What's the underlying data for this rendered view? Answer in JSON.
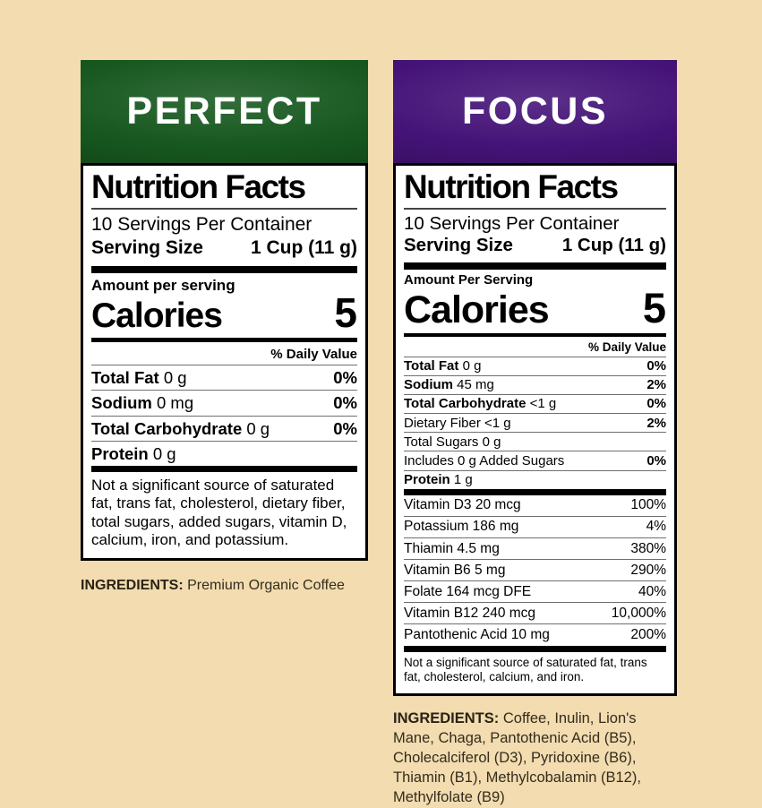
{
  "page": {
    "background_color": "#f2dcb0"
  },
  "perfect": {
    "banner_title": "PERFECT",
    "banner_color": "#17581f",
    "panel": {
      "title": "Nutrition Facts",
      "servings_per_container": "10 Servings Per Container",
      "serving_size_label": "Serving Size",
      "serving_size_value": "1 Cup (11 g)",
      "amount_per_serving": "Amount per serving",
      "calories_label": "Calories",
      "calories_value": "5",
      "daily_value_header": "% Daily Value",
      "rows": [
        {
          "name": "Total Fat",
          "amount": "0 g",
          "dv": "0%"
        },
        {
          "name": "Sodium",
          "amount": "0 mg",
          "dv": "0%"
        },
        {
          "name": "Total Carbohydrate",
          "amount": "0 g",
          "dv": "0%"
        },
        {
          "name": "Protein",
          "amount": "0 g",
          "dv": ""
        }
      ],
      "footnote": "Not a significant source of saturated fat, trans fat, cholesterol, dietary fiber, total sugars, added sugars, vitamin D, calcium, iron, and potassium."
    },
    "ingredients_label": "INGREDIENTS:",
    "ingredients_text": "Premium Organic Coffee"
  },
  "focus": {
    "banner_title": "FOCUS",
    "banner_color": "#451378",
    "panel": {
      "title": "Nutrition Facts",
      "servings_per_container": "10 Servings Per Container",
      "serving_size_label": "Serving Size",
      "serving_size_value": "1 Cup (11 g)",
      "amount_per_serving": "Amount Per Serving",
      "calories_label": "Calories",
      "calories_value": "5",
      "daily_value_header": "% Daily Value",
      "rows": [
        {
          "name": "Total Fat",
          "amount": "0 g",
          "dv": "0%"
        },
        {
          "name": "Sodium",
          "amount": "45 mg",
          "dv": "2%"
        },
        {
          "name": "Total Carbohydrate",
          "amount": "<1 g",
          "dv": "0%"
        },
        {
          "name": "Dietary Fiber",
          "amount": "<1 g",
          "dv": "2%"
        },
        {
          "name": "Total Sugars",
          "amount": "0 g",
          "dv": ""
        },
        {
          "name": "Includes 0 g Added Sugars",
          "amount": "",
          "dv": "0%"
        },
        {
          "name": "Protein",
          "amount": "1 g",
          "dv": ""
        }
      ],
      "vitamins": [
        {
          "name": "Vitamin D3 20 mcg",
          "dv": "100%"
        },
        {
          "name": "Potassium 186 mg",
          "dv": "4%"
        },
        {
          "name": "Thiamin 4.5 mg",
          "dv": "380%"
        },
        {
          "name": "Vitamin B6 5 mg",
          "dv": "290%"
        },
        {
          "name": "Folate 164 mcg DFE",
          "dv": "40%"
        },
        {
          "name": "Vitamin B12 240 mcg",
          "dv": "10,000%"
        },
        {
          "name": "Pantothenic Acid 10 mg",
          "dv": "200%"
        }
      ],
      "footnote": "Not a significant source of saturated fat, trans fat, cholesterol, calcium, and iron."
    },
    "ingredients_label": "INGREDIENTS:",
    "ingredients_text": "Coffee, Inulin, Lion's Mane, Chaga, Pantothenic Acid (B5), Cholecalciferol (D3), Pyridoxine (B6), Thiamin (B1), Methylcobalamin (B12), Methylfolate (B9)"
  }
}
